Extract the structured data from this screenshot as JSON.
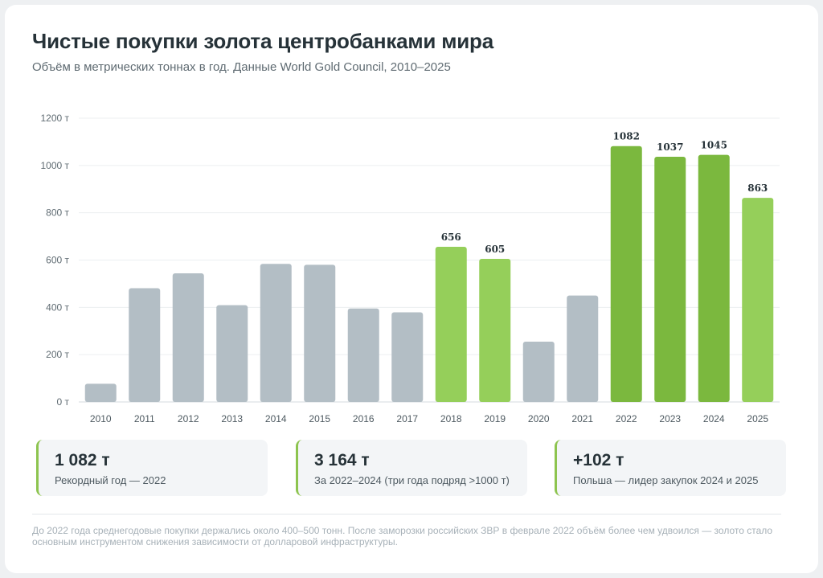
{
  "title": "Чистые покупки золота центробанками мира",
  "subtitle": "Объём в метрических тоннах в год. Данные World Gold Council, 2010–2025",
  "chart_data": {
    "type": "bar",
    "categories": [
      "2010",
      "2011",
      "2012",
      "2013",
      "2014",
      "2015",
      "2016",
      "2017",
      "2018",
      "2019",
      "2020",
      "2021",
      "2022",
      "2023",
      "2024",
      "2025"
    ],
    "values": [
      77,
      481,
      544,
      409,
      584,
      580,
      395,
      379,
      656,
      605,
      255,
      450,
      1082,
      1037,
      1045,
      863
    ],
    "data_labels": [
      "",
      "",
      "",
      "",
      "",
      "",
      "",
      "",
      "656",
      "605",
      "",
      "",
      "1082",
      "1037",
      "1045",
      "863"
    ],
    "bar_colors": [
      "#b3bec5",
      "#b3bec5",
      "#b3bec5",
      "#b3bec5",
      "#b3bec5",
      "#b3bec5",
      "#b3bec5",
      "#b3bec5",
      "#95cf5a",
      "#95cf5a",
      "#b3bec5",
      "#b3bec5",
      "#7bb83e",
      "#7bb83e",
      "#7bb83e",
      "#95cf5a"
    ],
    "ylim": [
      0,
      1200
    ],
    "yticks": [
      0,
      200,
      400,
      600,
      800,
      1000,
      1200
    ],
    "ytick_labels": [
      "0 т",
      "200 т",
      "400 т",
      "600 т",
      "800 т",
      "1000 т",
      "1200 т"
    ],
    "grid": true,
    "xlabel": "",
    "ylabel": ""
  },
  "stats": [
    {
      "value": "1 082 т",
      "label": "Рекордный год — 2022"
    },
    {
      "value": "3 164 т",
      "label": "За 2022–2024 (три года подряд >1000 т)"
    },
    {
      "value": "+102 т",
      "label": "Польша — лидер закупок 2024 и 2025"
    }
  ],
  "note": "До 2022 года среднегодовые покупки держались около 400–500 тонн. После заморозки российских ЗВР в феврале 2022 объём более чем удвоился — золото стало основным инструментом снижения зависимости от долларовой инфраструктуры.",
  "colors": {
    "grey_bar": "#b3bec5",
    "light_green_bar": "#95cf5a",
    "dark_green_bar": "#7bb83e",
    "accent": "#8dc44f"
  }
}
